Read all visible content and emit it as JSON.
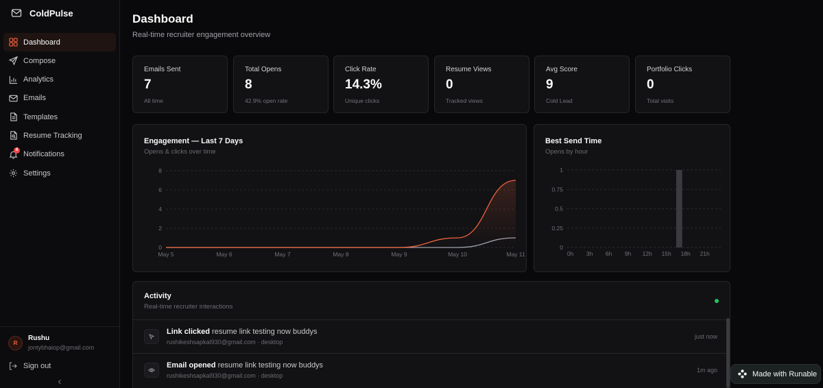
{
  "brand": {
    "name": "ColdPulse"
  },
  "sidebar": {
    "items": [
      {
        "label": "Dashboard",
        "icon": "grid-icon",
        "active": true
      },
      {
        "label": "Compose",
        "icon": "send-icon"
      },
      {
        "label": "Analytics",
        "icon": "bar-chart-icon"
      },
      {
        "label": "Emails",
        "icon": "mail-icon"
      },
      {
        "label": "Templates",
        "icon": "file-text-icon"
      },
      {
        "label": "Resume Tracking",
        "icon": "file-search-icon"
      },
      {
        "label": "Notifications",
        "icon": "bell-icon",
        "badge": "8"
      },
      {
        "label": "Settings",
        "icon": "gear-icon"
      }
    ],
    "user": {
      "initial": "R",
      "name": "Rushu",
      "email": "jontybhaiop@gmail.com"
    },
    "signout_label": "Sign out"
  },
  "header": {
    "title": "Dashboard",
    "subtitle": "Real-time recruiter engagement overview"
  },
  "stats": [
    {
      "label": "Emails Sent",
      "value": "7",
      "sub": "All time"
    },
    {
      "label": "Total Opens",
      "value": "8",
      "sub": "42.9% open rate"
    },
    {
      "label": "Click Rate",
      "value": "14.3%",
      "sub": "Unique clicks"
    },
    {
      "label": "Resume Views",
      "value": "0",
      "sub": "Tracked views"
    },
    {
      "label": "Avg Score",
      "value": "9",
      "sub": "Cold Lead"
    },
    {
      "label": "Portfolio Clicks",
      "value": "0",
      "sub": "Total visits"
    }
  ],
  "engagement": {
    "title": "Engagement — Last 7 Days",
    "subtitle": "Opens & clicks over time"
  },
  "best_send": {
    "title": "Best Send Time",
    "subtitle": "Opens by hour"
  },
  "chart_data": [
    {
      "type": "area",
      "title": "Engagement — Last 7 Days",
      "subtitle": "Opens & clicks over time",
      "categories": [
        "May 5",
        "May 6",
        "May 7",
        "May 8",
        "May 9",
        "May 10",
        "May 11"
      ],
      "yticks": [
        0,
        2,
        4,
        6,
        8
      ],
      "ylim": [
        0,
        8
      ],
      "grid": true,
      "series": [
        {
          "values": [
            0,
            0,
            0,
            0,
            0,
            1,
            7
          ],
          "color": "#f0643c"
        },
        {
          "values": [
            0,
            0,
            0,
            0,
            0,
            0,
            1
          ],
          "color": "#a1a1aa"
        }
      ]
    },
    {
      "type": "bar",
      "title": "Best Send Time",
      "subtitle": "Opens by hour",
      "xticks": [
        "0h",
        "3h",
        "6h",
        "9h",
        "12h",
        "15h",
        "18h",
        "21h"
      ],
      "xticks_hours": [
        0,
        3,
        6,
        9,
        12,
        15,
        18,
        21
      ],
      "yticks": [
        "0",
        "0.25",
        "0.5",
        "0.75",
        "1"
      ],
      "ylim": [
        0,
        1
      ],
      "grid": true,
      "bars": [
        {
          "hour": 17,
          "value": 1
        }
      ],
      "bar_color": "#3a3a3f"
    }
  ],
  "activity": {
    "title": "Activity",
    "subtitle": "Real-time recruiter interactions",
    "live_color": "#22c55e",
    "items": [
      {
        "action": "Link clicked",
        "subject": "resume link testing now buddys",
        "meta": "rushikeshsapkal930@gmail.com · desktop",
        "time": "just now",
        "icon": "cursor-click-icon"
      },
      {
        "action": "Email opened",
        "subject": "resume link testing now buddys",
        "meta": "rushikeshsapkal930@gmail.com · desktop",
        "time": "1m ago",
        "icon": "eye-icon"
      }
    ]
  },
  "runable": {
    "label": "Made with Runable"
  }
}
